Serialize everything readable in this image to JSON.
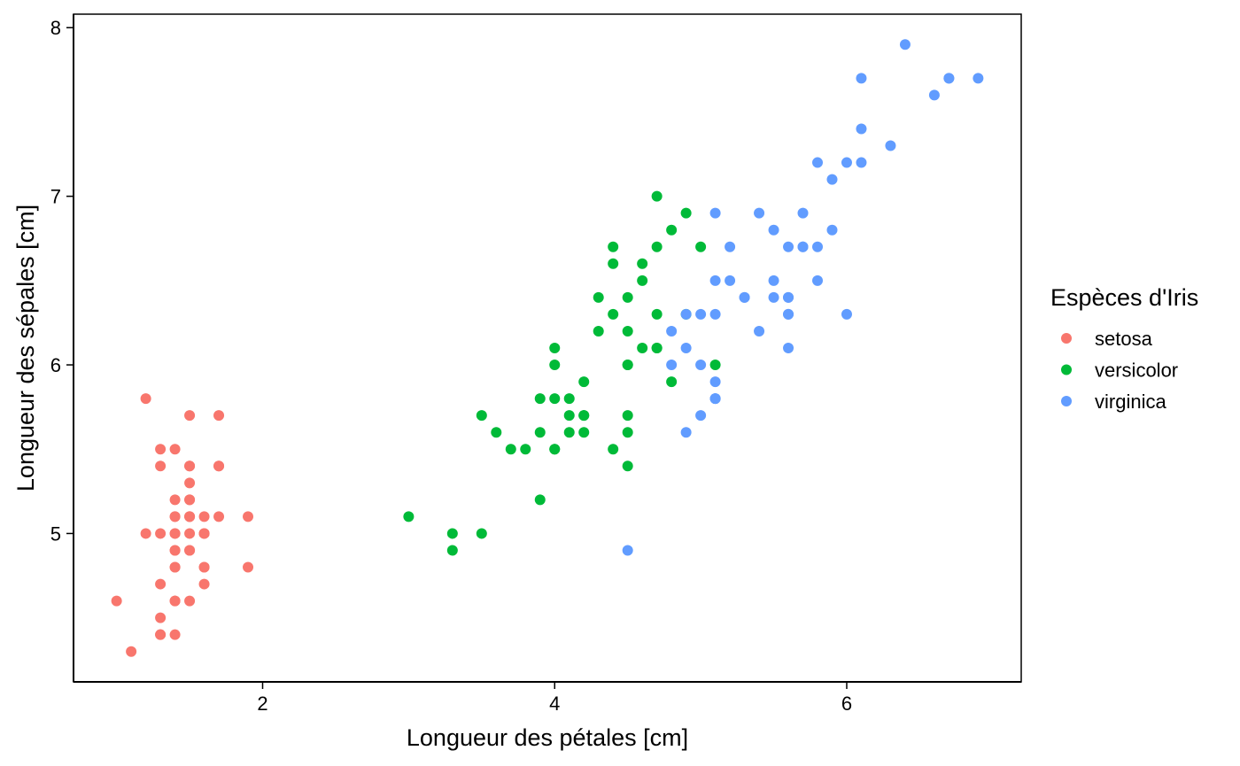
{
  "chart_data": {
    "type": "scatter",
    "title": "",
    "xlabel": "Longueur des pétales  [cm]",
    "ylabel": "Longueur des sépales  [cm]",
    "xlim": [
      0.705,
      7.195
    ],
    "ylim": [
      4.12,
      8.08
    ],
    "x_ticks": [
      2,
      4,
      6
    ],
    "y_ticks": [
      5,
      6,
      7,
      8
    ],
    "grid": false,
    "legend": {
      "title": "Espèces d'Iris",
      "position": "right"
    },
    "series": [
      {
        "name": "setosa",
        "color": "#F8766D",
        "points": [
          [
            1.4,
            5.1
          ],
          [
            1.4,
            4.9
          ],
          [
            1.3,
            4.7
          ],
          [
            1.5,
            4.6
          ],
          [
            1.4,
            5.0
          ],
          [
            1.7,
            5.4
          ],
          [
            1.4,
            4.6
          ],
          [
            1.5,
            5.0
          ],
          [
            1.4,
            4.4
          ],
          [
            1.5,
            4.9
          ],
          [
            1.5,
            5.4
          ],
          [
            1.6,
            4.8
          ],
          [
            1.4,
            4.8
          ],
          [
            1.1,
            4.3
          ],
          [
            1.2,
            5.8
          ],
          [
            1.5,
            5.7
          ],
          [
            1.3,
            5.4
          ],
          [
            1.4,
            5.1
          ],
          [
            1.7,
            5.7
          ],
          [
            1.5,
            5.1
          ],
          [
            1.7,
            5.4
          ],
          [
            1.5,
            5.1
          ],
          [
            1.0,
            4.6
          ],
          [
            1.7,
            5.1
          ],
          [
            1.9,
            4.8
          ],
          [
            1.6,
            5.0
          ],
          [
            1.6,
            5.0
          ],
          [
            1.5,
            5.2
          ],
          [
            1.4,
            5.2
          ],
          [
            1.6,
            4.7
          ],
          [
            1.6,
            4.8
          ],
          [
            1.5,
            5.4
          ],
          [
            1.5,
            5.2
          ],
          [
            1.4,
            5.5
          ],
          [
            1.5,
            4.9
          ],
          [
            1.2,
            5.0
          ],
          [
            1.3,
            5.5
          ],
          [
            1.4,
            4.9
          ],
          [
            1.3,
            4.4
          ],
          [
            1.5,
            5.1
          ],
          [
            1.3,
            5.0
          ],
          [
            1.3,
            4.5
          ],
          [
            1.3,
            4.4
          ],
          [
            1.6,
            5.0
          ],
          [
            1.9,
            5.1
          ],
          [
            1.4,
            4.8
          ],
          [
            1.6,
            5.1
          ],
          [
            1.4,
            4.6
          ],
          [
            1.5,
            5.3
          ],
          [
            1.4,
            5.0
          ]
        ]
      },
      {
        "name": "versicolor",
        "color": "#00BA38",
        "points": [
          [
            4.7,
            7.0
          ],
          [
            4.5,
            6.4
          ],
          [
            4.9,
            6.9
          ],
          [
            4.0,
            5.5
          ],
          [
            4.6,
            6.5
          ],
          [
            4.5,
            5.7
          ],
          [
            4.7,
            6.3
          ],
          [
            3.3,
            4.9
          ],
          [
            4.6,
            6.6
          ],
          [
            3.9,
            5.2
          ],
          [
            3.5,
            5.0
          ],
          [
            4.2,
            5.9
          ],
          [
            4.0,
            6.0
          ],
          [
            4.7,
            6.1
          ],
          [
            3.6,
            5.6
          ],
          [
            4.4,
            6.7
          ],
          [
            4.5,
            5.6
          ],
          [
            4.1,
            5.8
          ],
          [
            4.5,
            6.2
          ],
          [
            3.9,
            5.6
          ],
          [
            4.8,
            5.9
          ],
          [
            4.0,
            6.1
          ],
          [
            4.9,
            6.3
          ],
          [
            4.7,
            6.1
          ],
          [
            4.3,
            6.4
          ],
          [
            4.4,
            6.6
          ],
          [
            4.8,
            6.8
          ],
          [
            5.0,
            6.7
          ],
          [
            4.5,
            6.0
          ],
          [
            3.5,
            5.7
          ],
          [
            3.8,
            5.5
          ],
          [
            3.7,
            5.5
          ],
          [
            3.9,
            5.8
          ],
          [
            5.1,
            6.0
          ],
          [
            4.5,
            5.4
          ],
          [
            4.5,
            6.0
          ],
          [
            4.7,
            6.7
          ],
          [
            4.4,
            6.3
          ],
          [
            4.1,
            5.6
          ],
          [
            4.0,
            5.5
          ],
          [
            4.4,
            5.5
          ],
          [
            4.6,
            6.1
          ],
          [
            4.0,
            5.8
          ],
          [
            3.3,
            5.0
          ],
          [
            4.2,
            5.6
          ],
          [
            4.2,
            5.7
          ],
          [
            4.2,
            5.7
          ],
          [
            4.3,
            6.2
          ],
          [
            3.0,
            5.1
          ],
          [
            4.1,
            5.7
          ]
        ]
      },
      {
        "name": "virginica",
        "color": "#619CFF",
        "points": [
          [
            6.0,
            6.3
          ],
          [
            5.1,
            5.8
          ],
          [
            5.9,
            7.1
          ],
          [
            5.6,
            6.3
          ],
          [
            5.8,
            6.5
          ],
          [
            6.6,
            7.6
          ],
          [
            4.5,
            4.9
          ],
          [
            6.3,
            7.3
          ],
          [
            5.8,
            6.7
          ],
          [
            6.1,
            7.2
          ],
          [
            5.1,
            6.5
          ],
          [
            5.3,
            6.4
          ],
          [
            5.5,
            6.8
          ],
          [
            5.0,
            5.7
          ],
          [
            5.1,
            5.8
          ],
          [
            5.3,
            6.4
          ],
          [
            5.5,
            6.5
          ],
          [
            6.7,
            7.7
          ],
          [
            6.9,
            7.7
          ],
          [
            5.0,
            6.0
          ],
          [
            5.7,
            6.9
          ],
          [
            4.9,
            5.6
          ],
          [
            6.7,
            7.7
          ],
          [
            4.9,
            6.3
          ],
          [
            5.7,
            6.7
          ],
          [
            6.0,
            7.2
          ],
          [
            4.8,
            6.2
          ],
          [
            4.9,
            6.1
          ],
          [
            5.6,
            6.4
          ],
          [
            5.8,
            7.2
          ],
          [
            6.1,
            7.4
          ],
          [
            6.4,
            7.9
          ],
          [
            5.6,
            6.4
          ],
          [
            5.1,
            6.3
          ],
          [
            5.6,
            6.1
          ],
          [
            6.1,
            7.7
          ],
          [
            5.6,
            6.3
          ],
          [
            5.5,
            6.4
          ],
          [
            4.8,
            6.0
          ],
          [
            5.4,
            6.9
          ],
          [
            5.6,
            6.7
          ],
          [
            5.1,
            6.9
          ],
          [
            5.1,
            5.8
          ],
          [
            5.9,
            6.8
          ],
          [
            5.7,
            6.7
          ],
          [
            5.2,
            6.7
          ],
          [
            5.0,
            6.3
          ],
          [
            5.2,
            6.5
          ],
          [
            5.4,
            6.2
          ],
          [
            5.1,
            5.9
          ]
        ]
      }
    ]
  }
}
